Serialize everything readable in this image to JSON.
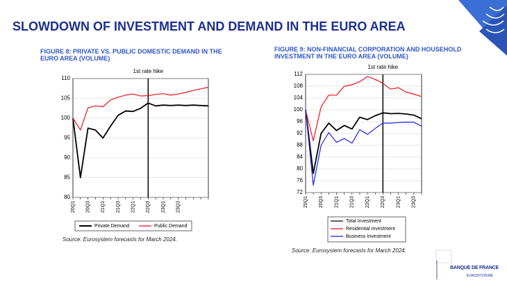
{
  "title": "SLOWDOWN OF INVESTMENT AND DEMAND IN THE EURO AREA",
  "chart_data": [
    {
      "type": "line",
      "title": "FIGURE 8: PRIVATE VS. PUBLIC DOMESTIC DEMAND IN THE EURO AREA (VOLUME)",
      "categories": [
        "20Q1",
        null,
        "20Q3",
        null,
        "21Q1",
        null,
        "21Q3",
        null,
        "22Q1",
        null,
        "22Q3",
        null,
        "23Q1",
        null,
        "23Q3",
        null,
        null,
        null,
        null
      ],
      "series": [
        {
          "name": "Private Demand",
          "color": "#000000",
          "values": [
            100,
            85,
            97.5,
            97,
            95,
            98,
            100.7,
            101.8,
            101.7,
            102.5,
            103.8,
            103.1,
            103.3,
            103.2,
            103.3,
            103.2,
            103.3,
            103.2,
            103.1
          ]
        },
        {
          "name": "Public Demand",
          "color": "#e8141b",
          "values": [
            100,
            97,
            102.6,
            103.1,
            102.9,
            104.6,
            105.3,
            105.8,
            106.1,
            105.6,
            105.7,
            106.0,
            106.2,
            105.8,
            106.1,
            106.5,
            107.0,
            107.4,
            107.8
          ]
        }
      ],
      "ylim": [
        80,
        110
      ],
      "yticks": [
        80,
        85,
        90,
        95,
        100,
        105,
        110
      ],
      "grid": true,
      "legend": "bottom",
      "annotations": [
        {
          "text": "1st rate hike",
          "x": "22Q3"
        }
      ],
      "source": "Source: Eurosystem forecasts for March 2024."
    },
    {
      "type": "line",
      "title": "FIGURE 9: NON-FINANCIAL CORPORATION AND HOUSEHOLD INVESTMENT IN THE EURO AREA (VOLUME)",
      "categories": [
        "20Q1",
        null,
        "20Q3",
        null,
        "21Q1",
        null,
        "21Q3",
        null,
        "22Q1",
        null,
        "22Q3",
        null,
        "23Q1",
        null,
        "23Q3",
        null
      ],
      "series": [
        {
          "name": "Total Investment",
          "color": "#000000",
          "values": [
            100,
            78.5,
            92,
            95.5,
            93,
            94.7,
            93.5,
            97.5,
            96.7,
            98,
            99,
            98.7,
            98.8,
            98.6,
            98.2,
            97
          ]
        },
        {
          "name": "Residential Investment",
          "color": "#e8141b",
          "values": [
            100,
            89.5,
            101,
            105,
            105,
            108,
            108.5,
            109.5,
            111.3,
            110.3,
            109,
            107,
            107.5,
            106,
            105.3,
            104.5
          ]
        },
        {
          "name": "Business Investment",
          "color": "#1f1fe6",
          "values": [
            100,
            74.5,
            88,
            92.3,
            89,
            90.3,
            88.7,
            93.3,
            91.7,
            93.7,
            95.5,
            95.5,
            95.7,
            95.8,
            95.8,
            94.5
          ]
        }
      ],
      "ylim": [
        72,
        112
      ],
      "yticks": [
        72,
        76,
        80,
        84,
        88,
        92,
        96,
        100,
        104,
        108,
        112
      ],
      "grid": true,
      "legend": "bottom",
      "annotations": [
        {
          "text": "1st rate hike",
          "x": "22Q3"
        }
      ],
      "source": "Source: Eurosystem forecasts for March 2024."
    }
  ],
  "logo": {
    "name": "BANQUE DE FRANCE",
    "subtitle": "EUROSYSTÈME"
  }
}
